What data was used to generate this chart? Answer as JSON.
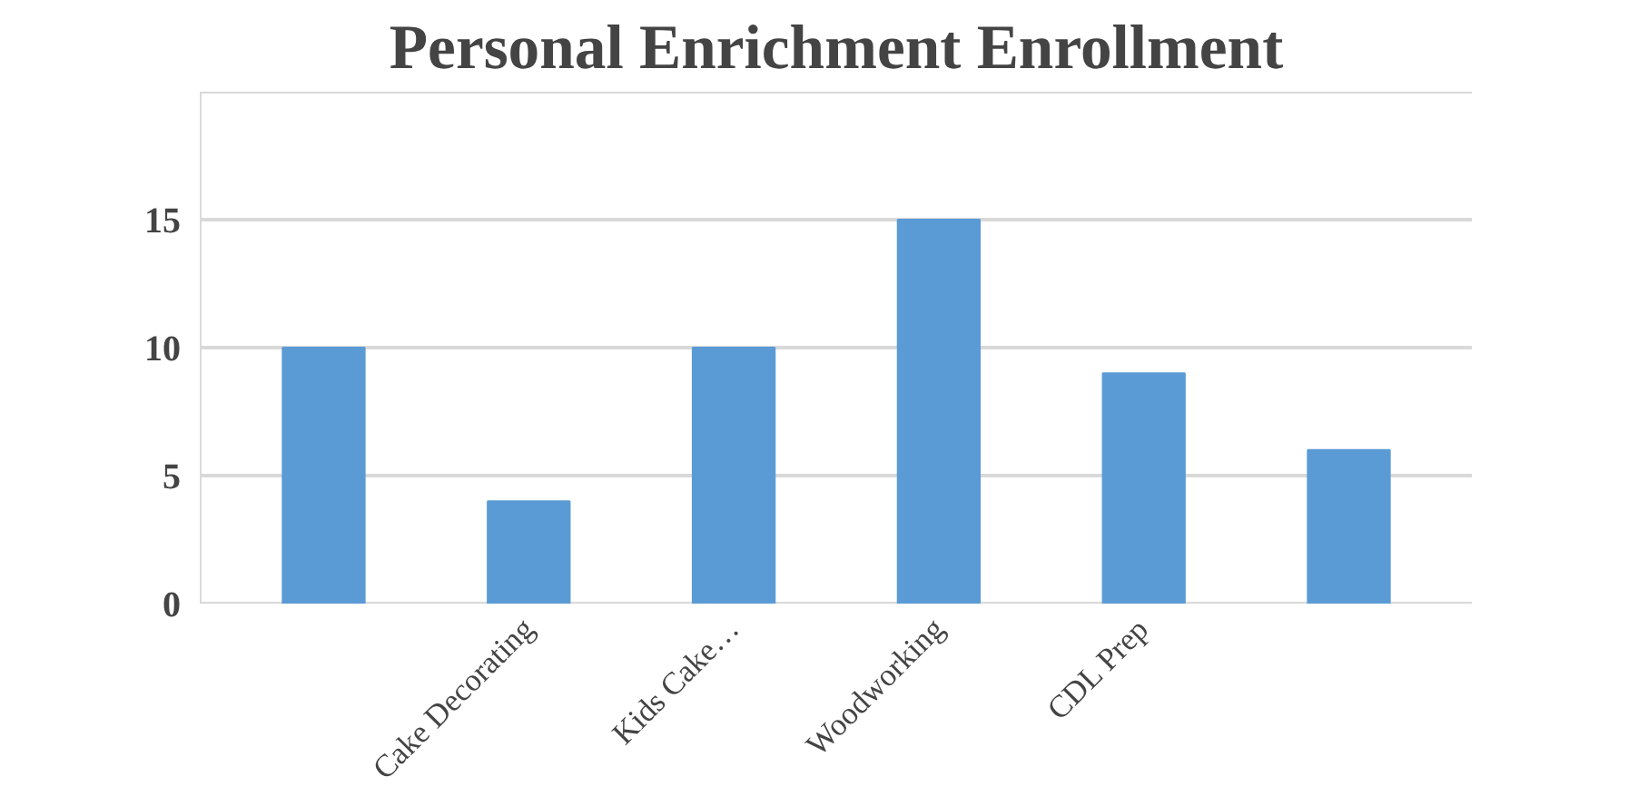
{
  "chart_data": {
    "type": "bar",
    "title": "Personal Enrichment Enrollment",
    "categories": [
      null,
      "Cake Decorating",
      "Kids Cake…",
      "Woodworking",
      "CDL Prep",
      null
    ],
    "values": [
      10,
      4,
      10,
      15,
      9,
      6
    ],
    "color": "#5b9bd5",
    "ylim": [
      0,
      20
    ],
    "yticks": [
      0,
      5,
      10,
      15,
      {
        "value": 20,
        "label": null
      }
    ],
    "grid": "y"
  }
}
